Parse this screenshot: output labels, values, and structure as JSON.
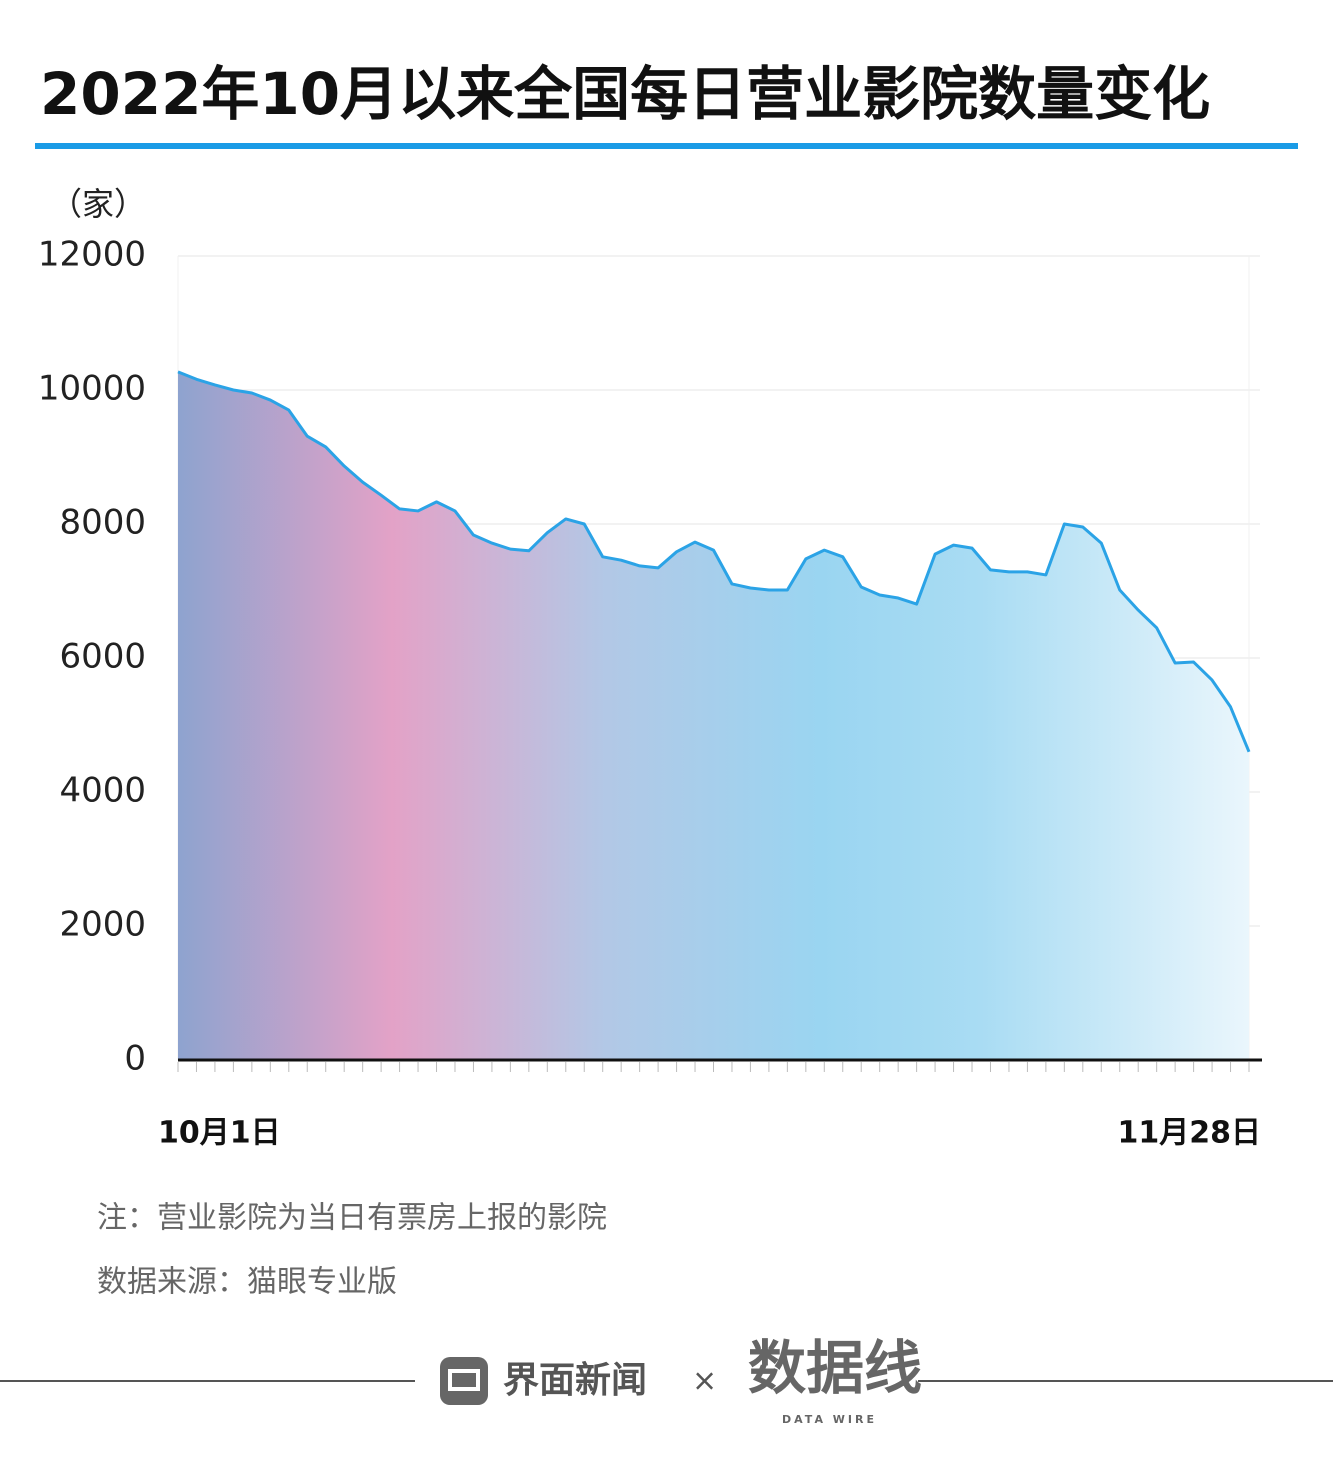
{
  "chart_data": {
    "type": "area",
    "title": "2022年10月以来全国每日营业影院数量变化",
    "y_unit": "（家）",
    "note": "注：营业影院为当日有票房上报的影院",
    "source": "数据来源：猫眼专业版",
    "footer_brand": "界面新闻",
    "footer_times": "×",
    "footer_partner": "数据线",
    "footer_partner_en": "DATA WIRE",
    "categories": [
      "10月1日",
      null,
      null,
      null,
      null,
      null,
      null,
      null,
      null,
      null,
      null,
      null,
      null,
      null,
      null,
      null,
      null,
      null,
      null,
      null,
      null,
      null,
      null,
      null,
      null,
      null,
      null,
      null,
      null,
      null,
      null,
      null,
      null,
      null,
      null,
      null,
      null,
      null,
      null,
      null,
      null,
      null,
      null,
      null,
      null,
      null,
      null,
      null,
      null,
      null,
      null,
      null,
      null,
      null,
      null,
      null,
      null,
      null,
      "11月28日"
    ],
    "values": [
      10270,
      10160,
      10075,
      10000,
      9955,
      9850,
      9700,
      9310,
      9150,
      8865,
      8625,
      8430,
      8225,
      8195,
      8330,
      8195,
      7835,
      7715,
      7625,
      7600,
      7870,
      8075,
      8000,
      7510,
      7460,
      7375,
      7345,
      7585,
      7730,
      7610,
      7105,
      7045,
      7015,
      7015,
      7480,
      7610,
      7510,
      7060,
      6940,
      6895,
      6805,
      7550,
      7685,
      7640,
      7315,
      7285,
      7285,
      7240,
      8000,
      7955,
      7715,
      7015,
      6715,
      6450,
      5925,
      5940,
      5670,
      5270,
      4600
    ],
    "color": "#2ba3e6",
    "ylim": [
      0,
      12000
    ],
    "yticks": [
      0,
      2000,
      4000,
      6000,
      8000,
      10000,
      12000
    ],
    "grid": true
  }
}
